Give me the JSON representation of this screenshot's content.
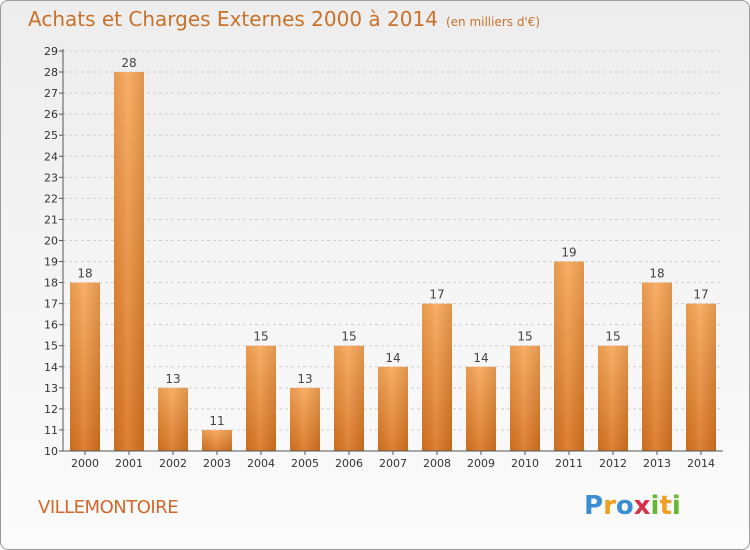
{
  "header": {
    "title": "Achats et Charges Externes 2000 à 2014",
    "unit": "(en milliers d'€)"
  },
  "footer": {
    "city": "VILLEMONTOIRE",
    "logo_text": "Proxiti"
  },
  "colors": {
    "bar_top": "#f7a656",
    "bar_bottom": "#d8731f",
    "title": "#c8712a",
    "grid": "#cfcfcf"
  },
  "chart_data": {
    "type": "bar",
    "title": "Achats et Charges Externes 2000 à 2014",
    "subtitle": "(en milliers d'€)",
    "xlabel": "",
    "ylabel": "",
    "categories": [
      "2000",
      "2001",
      "2002",
      "2003",
      "2004",
      "2005",
      "2006",
      "2007",
      "2008",
      "2009",
      "2010",
      "2011",
      "2012",
      "2013",
      "2014"
    ],
    "values": [
      18,
      28,
      13,
      11,
      15,
      13,
      15,
      14,
      17,
      14,
      15,
      19,
      15,
      18,
      17
    ],
    "ylim": [
      10,
      29
    ],
    "yticks": [
      10,
      11,
      12,
      13,
      14,
      15,
      16,
      17,
      18,
      19,
      20,
      21,
      22,
      23,
      24,
      25,
      26,
      27,
      28,
      29
    ],
    "grid": true,
    "data_labels": true
  }
}
